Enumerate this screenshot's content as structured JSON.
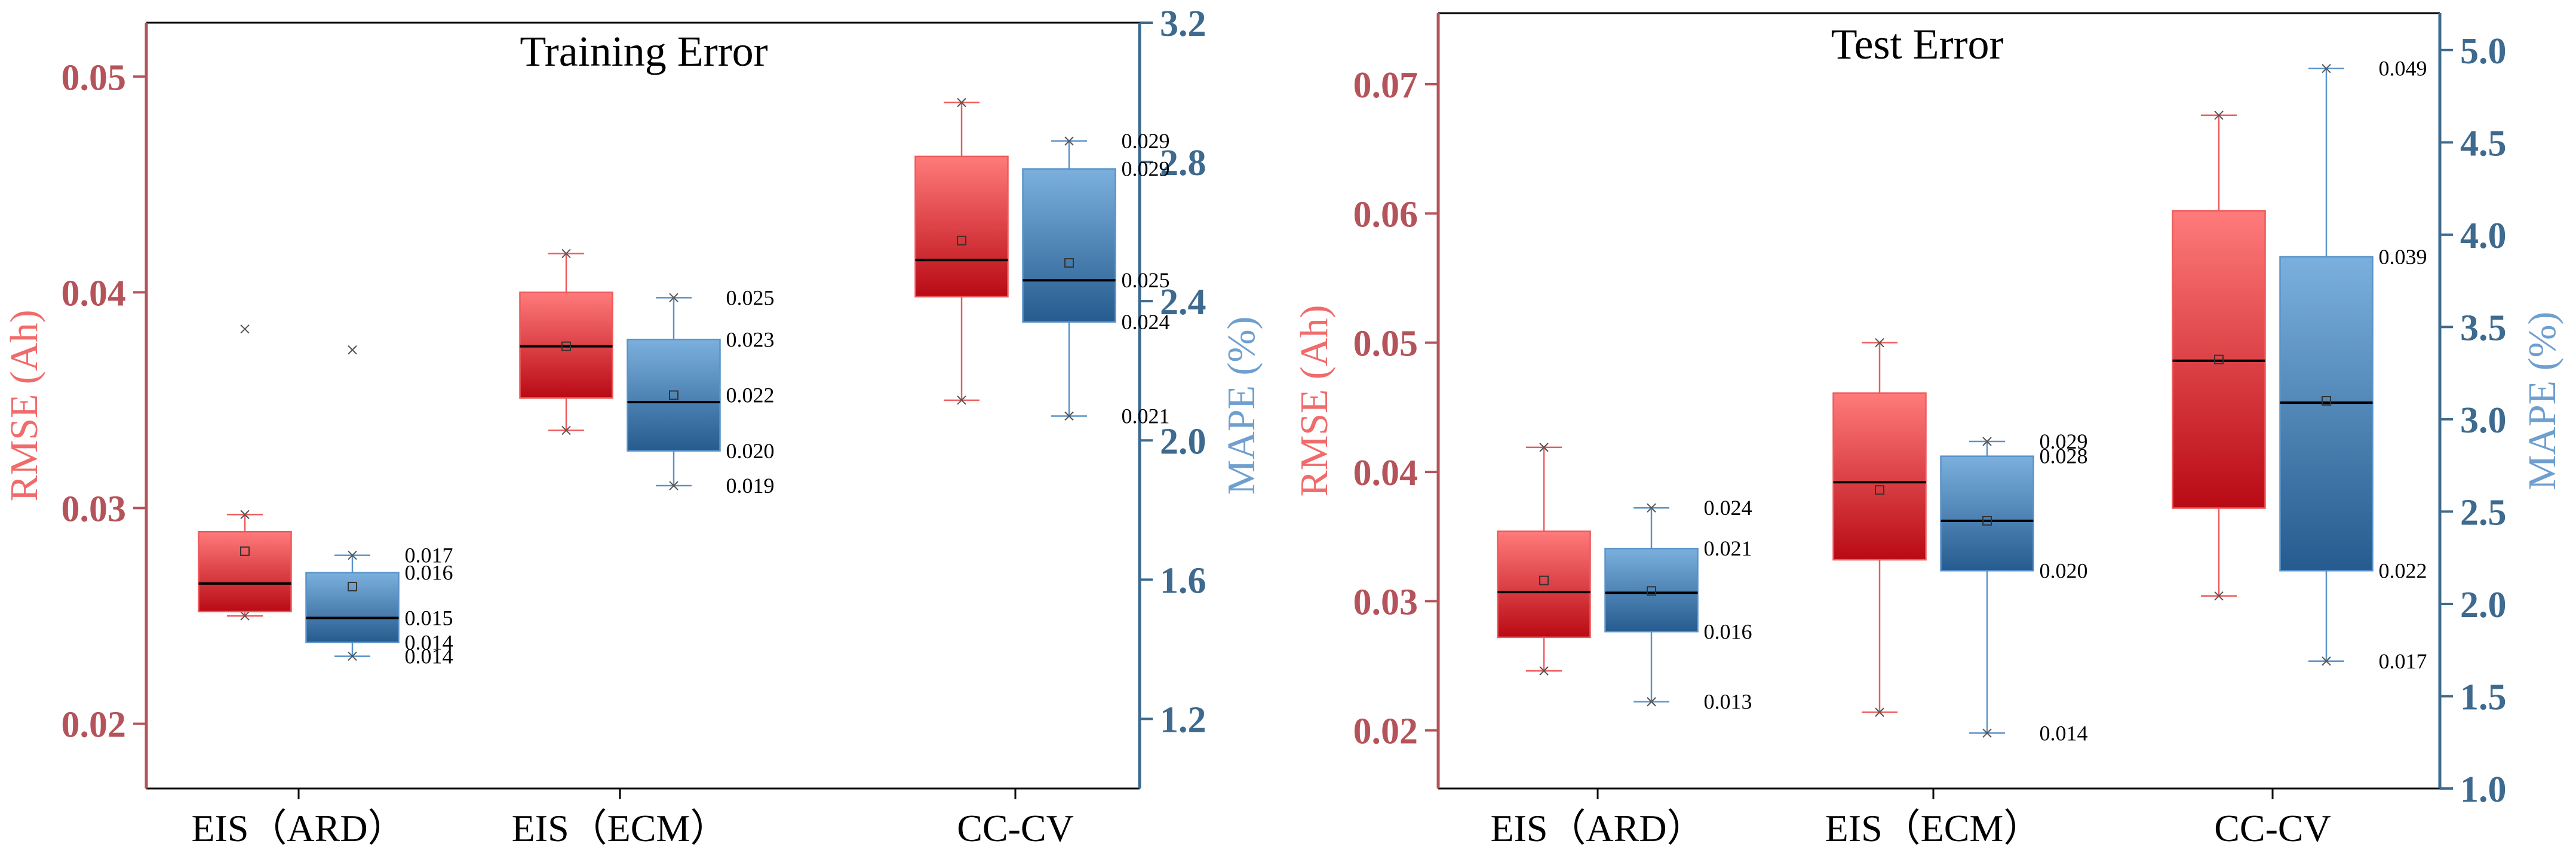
{
  "colors": {
    "rmse_axis": "#b5535a",
    "mape_axis": "#3d6a8e",
    "rmse_label": "#f06b6b",
    "mape_label": "#6e9fcf",
    "red_top": "#ff7b7b",
    "red_bottom": "#b90a14",
    "blue_top": "#7bb0de",
    "blue_bottom": "#255b8e",
    "red_line": "#ee5a5a",
    "blue_line": "#5a93c9"
  },
  "chart_data": [
    {
      "type": "box",
      "title": "Training Error",
      "categories": [
        "EIS（ARD）",
        "EIS（ECM）",
        "CC-CV"
      ],
      "ylabel_left": "RMSE (Ah)",
      "ylabel_right": "MAPE (%)",
      "ylim_left": [
        0.017,
        0.0525
      ],
      "ylim_right": [
        1.0,
        3.2
      ],
      "yticks_left": [
        "0.02",
        "0.03",
        "0.04",
        "0.05"
      ],
      "yticks_right": [
        "1.2",
        "1.6",
        "2.0",
        "2.4",
        "2.8",
        "3.2"
      ],
      "series": [
        {
          "name": "RMSE",
          "axis": "left",
          "boxes": [
            {
              "min": 0.025,
              "q1": 0.0252,
              "median": 0.0265,
              "mean": 0.028,
              "q3": 0.0289,
              "max": 0.0297,
              "outliers": [
                0.0383
              ]
            },
            {
              "min": 0.0336,
              "q1": 0.0351,
              "median": 0.0375,
              "mean": 0.0375,
              "q3": 0.04,
              "max": 0.0418,
              "outliers": []
            },
            {
              "min": 0.035,
              "q1": 0.0398,
              "median": 0.0415,
              "mean": 0.0424,
              "q3": 0.0463,
              "max": 0.0488,
              "outliers": []
            }
          ]
        },
        {
          "name": "MAPE",
          "axis": "right",
          "boxes": [
            {
              "min": 1.38,
              "q1": 1.42,
              "median": 1.49,
              "mean": 1.58,
              "q3": 1.62,
              "max": 1.67,
              "outliers": [
                2.26
              ],
              "labels": [
                {
                  "v": 1.67,
                  "t": "0.017"
                },
                {
                  "v": 1.62,
                  "t": "0.016"
                },
                {
                  "v": 1.49,
                  "t": "0.015"
                },
                {
                  "v": 1.42,
                  "t": "0.014"
                },
                {
                  "v": 1.38,
                  "t": "0.014"
                }
              ]
            },
            {
              "min": 1.87,
              "q1": 1.97,
              "median": 2.11,
              "mean": 2.13,
              "q3": 2.29,
              "max": 2.41,
              "outliers": [],
              "labels": [
                {
                  "v": 2.41,
                  "t": "0.025"
                },
                {
                  "v": 2.29,
                  "t": "0.023"
                },
                {
                  "v": 2.13,
                  "t": "0.022"
                },
                {
                  "v": 1.97,
                  "t": "0.020"
                },
                {
                  "v": 1.87,
                  "t": "0.019"
                }
              ]
            },
            {
              "min": 2.07,
              "q1": 2.34,
              "median": 2.46,
              "mean": 2.51,
              "q3": 2.78,
              "max": 2.86,
              "outliers": [],
              "labels": [
                {
                  "v": 2.86,
                  "t": "0.029"
                },
                {
                  "v": 2.78,
                  "t": "0.029"
                },
                {
                  "v": 2.46,
                  "t": "0.025"
                },
                {
                  "v": 2.34,
                  "t": "0.024"
                },
                {
                  "v": 2.07,
                  "t": "0.021"
                }
              ]
            }
          ]
        }
      ]
    },
    {
      "type": "box",
      "title": "Test Error",
      "categories": [
        "EIS（ARD）",
        "EIS（ECM）",
        "CC-CV"
      ],
      "ylabel_left": "RMSE (Ah)",
      "ylabel_right": "MAPE (%)",
      "ylim_left": [
        0.0155,
        0.0755
      ],
      "ylim_right": [
        1.0,
        5.2
      ],
      "yticks_left": [
        "0.02",
        "0.03",
        "0.04",
        "0.05",
        "0.06",
        "0.07"
      ],
      "yticks_right": [
        "1.0",
        "1.5",
        "2.0",
        "2.5",
        "3.0",
        "3.5",
        "4.0",
        "4.5",
        "5.0"
      ],
      "series": [
        {
          "name": "RMSE",
          "axis": "left",
          "boxes": [
            {
              "min": 0.0246,
              "q1": 0.0272,
              "median": 0.0307,
              "mean": 0.0316,
              "q3": 0.0354,
              "max": 0.0419,
              "outliers": []
            },
            {
              "min": 0.0214,
              "q1": 0.0332,
              "median": 0.0392,
              "mean": 0.0386,
              "q3": 0.0461,
              "max": 0.05,
              "outliers": []
            },
            {
              "min": 0.0304,
              "q1": 0.0372,
              "median": 0.0486,
              "mean": 0.0487,
              "q3": 0.0602,
              "max": 0.0676,
              "outliers": []
            }
          ]
        },
        {
          "name": "MAPE",
          "axis": "right",
          "boxes": [
            {
              "min": 1.47,
              "q1": 1.85,
              "median": 2.06,
              "mean": 2.07,
              "q3": 2.3,
              "max": 2.52,
              "outliers": [],
              "labels": [
                {
                  "v": 2.52,
                  "t": "0.024"
                },
                {
                  "v": 2.3,
                  "t": "0.021"
                },
                {
                  "v": 1.85,
                  "t": "0.016"
                },
                {
                  "v": 1.47,
                  "t": "0.013"
                }
              ]
            },
            {
              "min": 1.3,
              "q1": 2.18,
              "median": 2.45,
              "mean": 2.45,
              "q3": 2.8,
              "max": 2.88,
              "outliers": [],
              "labels": [
                {
                  "v": 2.88,
                  "t": "0.029"
                },
                {
                  "v": 2.8,
                  "t": "0.028"
                },
                {
                  "v": 2.18,
                  "t": "0.020"
                },
                {
                  "v": 1.3,
                  "t": "0.014"
                }
              ]
            },
            {
              "min": 1.69,
              "q1": 2.18,
              "median": 3.09,
              "mean": 3.1,
              "q3": 3.88,
              "max": 4.9,
              "outliers": [],
              "labels": [
                {
                  "v": 4.9,
                  "t": "0.049"
                },
                {
                  "v": 3.88,
                  "t": "0.039"
                },
                {
                  "v": 2.18,
                  "t": "0.022"
                },
                {
                  "v": 1.69,
                  "t": "0.017"
                }
              ]
            }
          ]
        }
      ]
    }
  ]
}
